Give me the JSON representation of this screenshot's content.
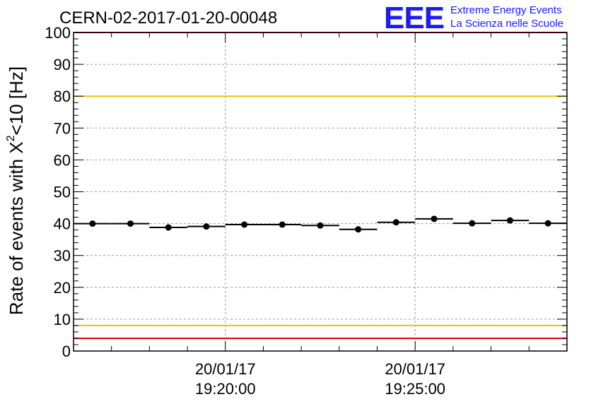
{
  "chart_data": {
    "type": "scatter",
    "title": "CERN-02-2017-01-20-00048",
    "ylabel": "Rate of events with X²<10 [Hz]",
    "ylabel_parts": {
      "prefix": "Rate of events with X",
      "superscript": "2",
      "suffix": "<10 [Hz]"
    },
    "ylim": [
      0,
      100
    ],
    "yticks": [
      0,
      10,
      20,
      30,
      40,
      50,
      60,
      70,
      80,
      90,
      100
    ],
    "xlim": [
      "2017-01-20 19:16:00",
      "2017-01-20 19:29:00"
    ],
    "xticks": [
      {
        "at": "2017-01-20 19:20:00",
        "date": "20/01/17",
        "time": "19:20:00"
      },
      {
        "at": "2017-01-20 19:25:00",
        "date": "20/01/17",
        "time": "19:25:00"
      }
    ],
    "grid": true,
    "bin_width_s": 60,
    "series": [
      {
        "x": [
          "19:16:30",
          "19:17:30",
          "19:18:30",
          "19:19:30",
          "19:20:30",
          "19:21:30",
          "19:22:30",
          "19:23:30",
          "19:24:30",
          "19:25:30",
          "19:26:30",
          "19:27:30",
          "19:28:30"
        ],
        "values": [
          40.0,
          40.0,
          38.8,
          39.1,
          39.7,
          39.7,
          39.4,
          38.2,
          40.4,
          41.5,
          40.1,
          41.0,
          40.1
        ]
      }
    ],
    "reference_lines": [
      {
        "y": 80,
        "color": "#e8c400"
      },
      {
        "y": 8,
        "color": "#e8c400"
      },
      {
        "y": 100,
        "color": "#e00000"
      },
      {
        "y": 4,
        "color": "#e00000"
      }
    ]
  },
  "logo": {
    "mark": "EEE",
    "line1": "Extreme Energy Events",
    "line2": "La Scienza nelle Scuole",
    "color": "#1a1aff"
  }
}
